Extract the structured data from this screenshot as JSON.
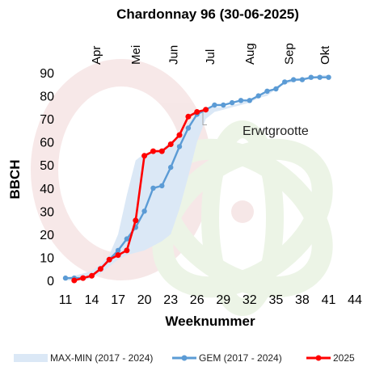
{
  "chart_data": {
    "type": "line",
    "title": "Chardonnay 96 (30-06-2025)",
    "xlabel": "Weeknummer",
    "ylabel": "BBCH",
    "xlim": [
      11,
      44
    ],
    "ylim": [
      0,
      90
    ],
    "x_ticks": [
      11,
      14,
      17,
      20,
      23,
      26,
      29,
      32,
      35,
      38,
      41,
      44
    ],
    "y_ticks": [
      0,
      10,
      20,
      30,
      40,
      50,
      60,
      70,
      80,
      90
    ],
    "months": [
      {
        "label": "Apr",
        "week": 14.5
      },
      {
        "label": "Mei",
        "week": 19
      },
      {
        "label": "Jun",
        "week": 23.3
      },
      {
        "label": "Jul",
        "week": 27.5
      },
      {
        "label": "Aug",
        "week": 32
      },
      {
        "label": "Sep",
        "week": 36.5
      },
      {
        "label": "Okt",
        "week": 40.6
      }
    ],
    "band": {
      "name": "MAX-MIN (2017 - 2024)",
      "x": [
        11,
        12,
        13,
        14,
        15,
        16,
        17,
        18,
        19,
        20,
        21,
        22,
        23,
        24,
        25,
        26,
        27,
        28,
        29,
        30,
        31,
        32,
        33,
        34,
        35,
        36,
        37,
        38,
        39,
        40,
        41
      ],
      "upper": [
        1,
        2,
        3,
        4,
        7,
        11,
        20,
        37,
        52,
        55,
        56,
        57,
        60,
        63,
        68,
        72,
        75,
        75,
        75,
        76,
        77,
        78,
        80,
        81,
        84,
        86,
        87,
        88,
        88,
        89,
        89
      ],
      "lower": [
        0,
        0,
        0,
        1,
        3,
        6,
        9,
        11,
        12,
        13,
        15,
        17,
        20,
        31,
        45,
        60,
        70,
        73,
        74,
        75,
        76,
        77,
        79,
        80,
        83,
        85,
        86,
        87,
        87,
        88,
        88
      ]
    },
    "series": [
      {
        "name": "GEM (2017 - 2024)",
        "color": "#5b9bd5",
        "x": [
          11,
          12,
          13,
          14,
          15,
          16,
          17,
          18,
          19,
          20,
          21,
          22,
          23,
          24,
          25,
          26,
          27,
          28,
          29,
          30,
          31,
          32,
          33,
          34,
          35,
          36,
          37,
          38,
          39,
          40,
          41
        ],
        "values": [
          1,
          1,
          1,
          2,
          5,
          9,
          13,
          18,
          23,
          30,
          40,
          41,
          49,
          58,
          66,
          72,
          74,
          76,
          76,
          77,
          78,
          78,
          80,
          82,
          83,
          86,
          87,
          87,
          88,
          88,
          88
        ]
      },
      {
        "name": "2025",
        "color": "#ff0000",
        "x": [
          12,
          13,
          14,
          15,
          16,
          17,
          18,
          19,
          20,
          21,
          22,
          23,
          24,
          25,
          26,
          27
        ],
        "values": [
          0,
          1,
          2,
          5,
          9,
          11,
          13,
          26,
          54,
          56,
          56,
          59,
          63,
          71,
          73,
          74
        ]
      }
    ],
    "annotations": [
      {
        "text": "Erwtgrootte",
        "week": 26.3,
        "value": 73
      }
    ],
    "grid": false,
    "legend_position": "bottom"
  }
}
